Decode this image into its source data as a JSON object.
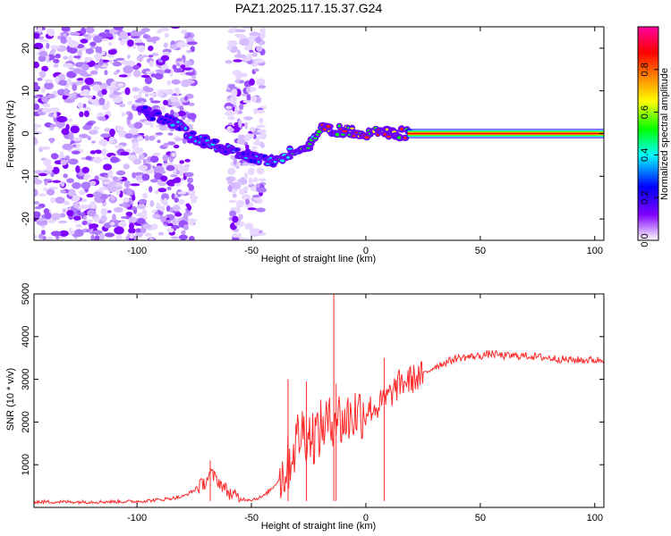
{
  "title": "PAZ1.2025.117.15.37.G24",
  "chart_data": [
    {
      "type": "heatmap",
      "xlabel": "Height of straight line (km)",
      "ylabel": "Frequency (Hz)",
      "xlim": [
        -145,
        104
      ],
      "ylim": [
        -25,
        25
      ],
      "xticks": [
        -100,
        -50,
        0,
        50,
        100
      ],
      "yticks": [
        20,
        10,
        0,
        -10,
        -20
      ],
      "colorbar": {
        "label": "Normalized spectral amplitude",
        "range": [
          0,
          1
        ],
        "ticks": [
          0.0,
          0.2,
          0.4,
          0.6,
          0.8
        ],
        "colors": [
          "#ffffff",
          "#8000ff",
          "#0000ff",
          "#00ffff",
          "#00ff00",
          "#ffff00",
          "#ff8000",
          "#ff0000",
          "#ff00a0"
        ]
      },
      "ridge": {
        "x": [
          -96,
          -90,
          -85,
          -80,
          -75,
          -70,
          -65,
          -60,
          -55,
          -50,
          -45,
          -40,
          -37,
          -33,
          -30,
          -25,
          -22,
          -18,
          -15,
          -10,
          -5,
          0,
          5,
          10,
          15,
          20,
          30,
          50,
          70,
          104
        ],
        "y": [
          5,
          4,
          3,
          1,
          -1,
          -2,
          -3,
          -4,
          -5,
          -5.5,
          -6,
          -7,
          -6,
          -4,
          -3.5,
          -2.5,
          -1,
          2,
          1,
          0.5,
          0.5,
          -0.5,
          0.5,
          0,
          0,
          0,
          0,
          0,
          0,
          0
        ]
      },
      "scatter_region_x": [
        -145,
        -75
      ],
      "scatter_band_x": [
        -60,
        -45
      ]
    },
    {
      "type": "line",
      "xlabel": "Height of straight line (km)",
      "ylabel": "SNR (10 * v/v)",
      "xlim": [
        -145,
        104
      ],
      "ylim": [
        0,
        5000
      ],
      "xticks": [
        -100,
        -50,
        0,
        50,
        100
      ],
      "yticks": [
        1000,
        2000,
        3000,
        4000,
        5000
      ],
      "line_color": "#ff2a2a",
      "series": [
        {
          "x": [
            -145,
            -120,
            -100,
            -90,
            -80,
            -75,
            -70,
            -68,
            -65,
            -60,
            -55,
            -50,
            -45,
            -40,
            -35,
            -32,
            -30,
            -28,
            -25,
            -22,
            -20,
            -18,
            -15,
            -14,
            -12,
            -10,
            -5,
            0,
            5,
            10,
            15,
            20,
            25,
            30,
            40,
            50,
            55,
            60,
            70,
            80,
            90,
            104
          ],
          "y": [
            130,
            130,
            140,
            180,
            250,
            400,
            600,
            800,
            650,
            350,
            200,
            180,
            250,
            500,
            900,
            1300,
            1600,
            1800,
            1700,
            1700,
            1800,
            2000,
            1900,
            2300,
            2100,
            2000,
            2200,
            2300,
            2350,
            2600,
            2900,
            3000,
            3100,
            3300,
            3500,
            3550,
            3600,
            3550,
            3550,
            3500,
            3450,
            3450
          ]
        }
      ],
      "spikes": [
        {
          "x": -14,
          "y": 5000
        },
        {
          "x": -34,
          "y": 3000
        },
        {
          "x": -26,
          "y": 2950
        },
        {
          "x": -13,
          "y": 2900
        },
        {
          "x": 8,
          "y": 3500
        },
        {
          "x": -68,
          "y": 1100
        }
      ]
    }
  ]
}
